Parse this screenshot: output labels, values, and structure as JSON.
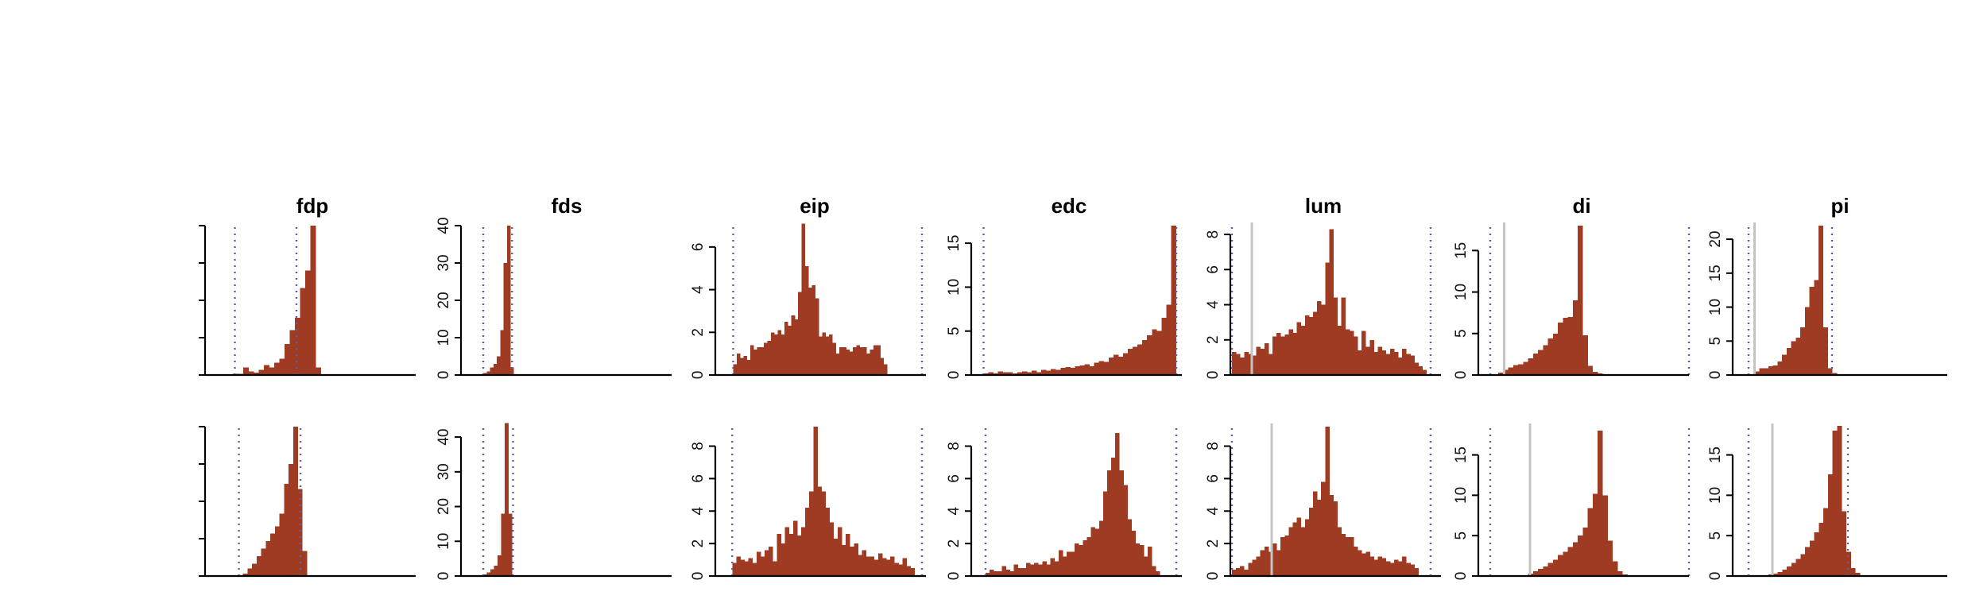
{
  "colors": {
    "bar": "#9e3b22",
    "axis": "#000000",
    "dotted_line": "#5a5fa8",
    "gray_line": "#c4c4c4"
  },
  "chart_data": [
    {
      "type": "bar",
      "title": "fdp",
      "row": 0,
      "col": 0,
      "y_ticks": [],
      "xlim": [
        0,
        100
      ],
      "ylim": [
        0,
        12
      ],
      "dotted": [
        7,
        38
      ],
      "gray": null,
      "bars": {
        "start": 6,
        "width": 2.6,
        "values": [
          0.1,
          0.1,
          0.6,
          0.3,
          0.2,
          0.4,
          0.8,
          0.6,
          1.0,
          1.3,
          2.5,
          3.6,
          4.6,
          7.0,
          8.4,
          12.0,
          0.6
        ]
      }
    },
    {
      "type": "bar",
      "title": "fds",
      "row": 0,
      "col": 1,
      "y_ticks": [
        0,
        10,
        20,
        30,
        40
      ],
      "xlim": [
        0,
        100
      ],
      "ylim": [
        0,
        40
      ],
      "dotted": [
        4,
        18.5
      ],
      "gray": null,
      "bars": {
        "start": 4,
        "width": 1.7,
        "values": [
          0.5,
          1,
          2,
          3,
          5,
          12,
          30,
          40,
          2
        ]
      }
    },
    {
      "type": "bar",
      "title": "eip",
      "row": 0,
      "col": 2,
      "y_ticks": [
        0,
        2,
        4,
        6
      ],
      "xlim": [
        0,
        100
      ],
      "ylim": [
        0,
        7
      ],
      "dotted": [
        5,
        100
      ],
      "gray": null,
      "bars": {
        "start": 5,
        "width": 1.72,
        "values": [
          0.5,
          1.0,
          0.8,
          0.9,
          0.7,
          1.4,
          1.2,
          1.3,
          1.3,
          1.5,
          1.6,
          2.0,
          1.9,
          2.1,
          1.9,
          2.5,
          2.3,
          2.8,
          2.6,
          3.9,
          7.1,
          5.1,
          4.1,
          4.2,
          3.6,
          1.8,
          2.0,
          1.8,
          1.9,
          1.5,
          1.0,
          1.3,
          1.3,
          1.2,
          1.1,
          1.3,
          1.4,
          1.3,
          1.3,
          1.0,
          1.2,
          1.4,
          1.4,
          0.8,
          0.5
        ]
      }
    },
    {
      "type": "bar",
      "title": "edc",
      "row": 0,
      "col": 3,
      "y_ticks": [
        0,
        5,
        10,
        15
      ],
      "xlim": [
        0,
        100
      ],
      "ylim": [
        0,
        17
      ],
      "dotted": [
        3,
        100
      ],
      "gray": null,
      "bars": {
        "start": 3,
        "width": 2.42,
        "values": [
          0.2,
          0.3,
          0.2,
          0.4,
          0.3,
          0.3,
          0.2,
          0.3,
          0.4,
          0.3,
          0.5,
          0.3,
          0.6,
          0.5,
          0.7,
          0.6,
          0.8,
          0.9,
          0.8,
          1.0,
          1.1,
          1.2,
          1.0,
          1.4,
          1.6,
          1.5,
          2.0,
          2.3,
          2.1,
          2.5,
          3.0,
          3.2,
          3.5,
          4.0,
          4.5,
          5.2,
          5.0,
          6.5,
          8.0,
          17.0
        ]
      }
    },
    {
      "type": "bar",
      "title": "lum",
      "row": 0,
      "col": 4,
      "y_ticks": [
        0,
        2,
        4,
        6,
        8
      ],
      "xlim": [
        0,
        100
      ],
      "ylim": [
        0,
        8.5
      ],
      "dotted": [
        0,
        100
      ],
      "gray": 10,
      "bars": {
        "start": 0,
        "width": 2.04,
        "values": [
          1.3,
          1.2,
          1.0,
          1.3,
          1.2,
          1.1,
          1.6,
          1.5,
          1.8,
          1.2,
          2.2,
          2.4,
          2.2,
          2.3,
          2.6,
          2.4,
          3.0,
          2.8,
          3.4,
          3.3,
          3.6,
          4.2,
          4.0,
          6.4,
          8.3,
          4.4,
          2.8,
          4.4,
          2.6,
          2.5,
          2.2,
          1.4,
          2.5,
          1.6,
          2.0,
          1.3,
          1.6,
          1.4,
          1.2,
          1.5,
          1.3,
          1.0,
          1.5,
          1.2,
          1.1,
          0.7,
          0.5,
          0.3
        ]
      }
    },
    {
      "type": "bar",
      "title": "di",
      "row": 0,
      "col": 5,
      "y_ticks": [
        0,
        5,
        10,
        15
      ],
      "xlim": [
        0,
        100
      ],
      "ylim": [
        0,
        18
      ],
      "dotted": [
        0,
        100
      ],
      "gray": 7,
      "bars": {
        "start": 4,
        "width": 2.5,
        "values": [
          0.3,
          0.6,
          0.9,
          1.2,
          1.3,
          1.6,
          2.0,
          2.6,
          3.0,
          3.6,
          4.4,
          5.0,
          6.3,
          6.9,
          7.0,
          9.0,
          18.0,
          4.8,
          1.1,
          0.4,
          0.2
        ]
      }
    },
    {
      "type": "bar",
      "title": "pi",
      "row": 0,
      "col": 6,
      "y_ticks": [
        0,
        5,
        10,
        15,
        20
      ],
      "xlim": [
        0,
        100
      ],
      "ylim": [
        0,
        22
      ],
      "dotted": [
        0,
        42
      ],
      "gray": 3,
      "bars": {
        "start": 3,
        "width": 2.3,
        "values": [
          0.5,
          1.0,
          1.0,
          1.3,
          1.4,
          2.0,
          3.0,
          4.0,
          5.0,
          5.5,
          7.0,
          10.0,
          13.0,
          14.0,
          22.0,
          7.0,
          1.0,
          0.3
        ]
      }
    },
    {
      "type": "bar",
      "title": "",
      "row": 1,
      "col": 0,
      "y_ticks": [],
      "xlim": [
        0,
        100
      ],
      "ylim": [
        0,
        12
      ],
      "dotted": [
        9,
        40
      ],
      "gray": null,
      "bars": {
        "start": 11,
        "width": 2.3,
        "values": [
          0.2,
          0.6,
          1.0,
          1.6,
          2.2,
          2.8,
          3.4,
          4.0,
          5.0,
          7.4,
          9.0,
          12.0,
          7.0,
          2.0
        ]
      }
    },
    {
      "type": "bar",
      "title": "",
      "row": 1,
      "col": 1,
      "y_ticks": [
        0,
        10,
        20,
        30,
        40
      ],
      "xlim": [
        0,
        100
      ],
      "ylim": [
        0,
        43
      ],
      "dotted": [
        4,
        19
      ],
      "gray": null,
      "bars": {
        "start": 4,
        "width": 1.8,
        "values": [
          0.5,
          1,
          2,
          3,
          6,
          18,
          44,
          18
        ]
      }
    },
    {
      "type": "bar",
      "title": "",
      "row": 1,
      "col": 2,
      "y_ticks": [
        0,
        2,
        4,
        6,
        8
      ],
      "xlim": [
        0,
        100
      ],
      "ylim": [
        0,
        9.2
      ],
      "dotted": [
        4.5,
        100
      ],
      "gray": null,
      "bars": {
        "start": 4.5,
        "width": 2.04,
        "values": [
          0.8,
          1.2,
          1.0,
          0.9,
          1.1,
          0.8,
          1.5,
          1.2,
          1.6,
          1.8,
          0.9,
          2.6,
          2.0,
          3.0,
          2.6,
          3.4,
          2.5,
          3.0,
          4.2,
          5.2,
          9.2,
          5.5,
          5.2,
          4.2,
          3.3,
          2.3,
          3.0,
          1.9,
          2.6,
          1.8,
          2.0,
          1.3,
          1.6,
          1.2,
          1.2,
          1.0,
          1.4,
          1.1,
          1.0,
          1.2,
          0.8,
          0.7,
          1.1,
          0.6,
          0.5
        ]
      }
    },
    {
      "type": "bar",
      "title": "",
      "row": 1,
      "col": 3,
      "y_ticks": [
        0,
        2,
        4,
        6,
        8
      ],
      "xlim": [
        0,
        100
      ],
      "ylim": [
        0,
        9.2
      ],
      "dotted": [
        4,
        100
      ],
      "gray": null,
      "bars": {
        "start": 4,
        "width": 2.04,
        "values": [
          0.2,
          0.4,
          0.3,
          0.3,
          0.6,
          0.4,
          0.3,
          0.7,
          0.5,
          0.5,
          0.8,
          0.7,
          0.8,
          0.7,
          0.9,
          0.7,
          1.1,
          0.9,
          1.6,
          1.2,
          1.5,
          1.5,
          2.0,
          1.9,
          2.2,
          2.4,
          3.0,
          2.9,
          3.4,
          5.2,
          6.5,
          7.3,
          8.8,
          6.5,
          5.6,
          3.5,
          2.8,
          2.0,
          1.9,
          1.2,
          1.8,
          0.6,
          0.3
        ]
      }
    },
    {
      "type": "bar",
      "title": "",
      "row": 1,
      "col": 4,
      "y_ticks": [
        0,
        2,
        4,
        6,
        8
      ],
      "xlim": [
        0,
        100
      ],
      "ylim": [
        0,
        9.2
      ],
      "dotted": [
        0,
        100
      ],
      "gray": 20,
      "bars": {
        "start": 0,
        "width": 2.04,
        "values": [
          0.4,
          0.5,
          0.6,
          0.4,
          0.8,
          1.0,
          1.2,
          1.6,
          1.8,
          1.5,
          2.0,
          1.6,
          2.4,
          2.5,
          3.0,
          3.3,
          3.6,
          3.0,
          3.5,
          4.2,
          5.2,
          4.7,
          5.8,
          9.2,
          5.0,
          4.6,
          3.0,
          2.6,
          2.4,
          2.4,
          1.8,
          1.6,
          1.4,
          1.5,
          1.2,
          1.0,
          1.2,
          1.1,
          0.9,
          0.8,
          1.0,
          0.9,
          1.2,
          0.8,
          0.7,
          0.5
        ]
      }
    },
    {
      "type": "bar",
      "title": "",
      "row": 1,
      "col": 5,
      "y_ticks": [
        0,
        5,
        10,
        15
      ],
      "xlim": [
        0,
        100
      ],
      "ylim": [
        0,
        18.5
      ],
      "dotted": [
        0,
        100
      ],
      "gray": 20,
      "bars": {
        "start": 19,
        "width": 2.5,
        "values": [
          0.3,
          0.6,
          0.9,
          1.2,
          1.6,
          2.0,
          2.6,
          3.0,
          3.6,
          4.2,
          5.0,
          6.0,
          8.4,
          10.2,
          18.0,
          10.0,
          4.4,
          1.8,
          0.6,
          0.2
        ]
      }
    },
    {
      "type": "bar",
      "title": "",
      "row": 1,
      "col": 6,
      "y_ticks": [
        0,
        5,
        10,
        15
      ],
      "xlim": [
        0,
        100
      ],
      "ylim": [
        0,
        18.5
      ],
      "dotted": [
        0,
        50
      ],
      "gray": 12,
      "bars": {
        "start": 10,
        "width": 2.3,
        "values": [
          0.2,
          0.3,
          0.5,
          0.8,
          1.2,
          1.6,
          2.1,
          2.7,
          3.6,
          4.4,
          5.4,
          6.6,
          8.4,
          12.6,
          18.0,
          18.6,
          8.0,
          3.0,
          1.0,
          0.4
        ]
      }
    }
  ]
}
